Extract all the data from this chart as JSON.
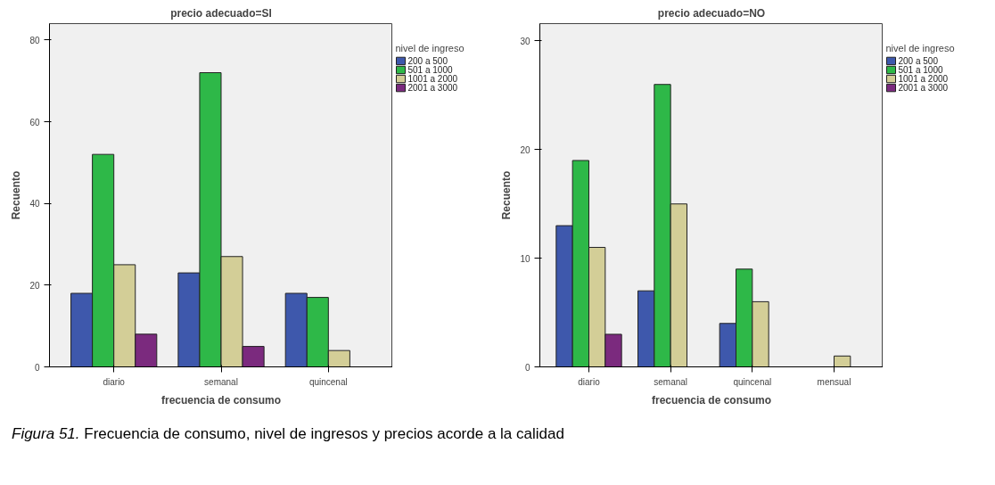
{
  "chart_data": [
    {
      "type": "bar",
      "title": "precio adecuado=SI",
      "xlabel": "frecuencia de consumo",
      "ylabel": "Recuento",
      "legend_title": "nivel de ingreso",
      "categories": [
        "diario",
        "semanal",
        "quincenal"
      ],
      "series": [
        {
          "name": "200 a 500",
          "color": "#3e58ac",
          "values": [
            18,
            23,
            18
          ]
        },
        {
          "name": "501 a 1000",
          "color": "#2eb848",
          "values": [
            52,
            72,
            17
          ]
        },
        {
          "name": "1001 a 2000",
          "color": "#d3ce97",
          "values": [
            25,
            27,
            4
          ]
        },
        {
          "name": "2001 a 3000",
          "color": "#7b2a7e",
          "values": [
            8,
            5,
            null
          ]
        }
      ],
      "ylim": [
        0,
        84
      ],
      "yticks": [
        0,
        20,
        40,
        60,
        80
      ],
      "grid": false,
      "legend": "right",
      "annotations": [
        "Figura 51.  Frecuencia de consumo, nivel de ingresos y precios acorde a la calidad"
      ]
    },
    {
      "type": "bar",
      "title": "precio adecuado=NO",
      "xlabel": "frecuencia de consumo",
      "ylabel": "Recuento",
      "legend_title": "nivel de ingreso",
      "categories": [
        "diario",
        "semanal",
        "quincenal",
        "mensual"
      ],
      "series": [
        {
          "name": "200 a 500",
          "color": "#3e58ac",
          "values": [
            13,
            7,
            4,
            null
          ]
        },
        {
          "name": "501 a 1000",
          "color": "#2eb848",
          "values": [
            19,
            26,
            9,
            null
          ]
        },
        {
          "name": "1001 a 2000",
          "color": "#d3ce97",
          "values": [
            11,
            15,
            6,
            1
          ]
        },
        {
          "name": "2001 a 3000",
          "color": "#7b2a7e",
          "values": [
            3,
            null,
            null,
            null
          ]
        }
      ],
      "ylim": [
        0,
        31.6
      ],
      "yticks": [
        0,
        10,
        20,
        30
      ],
      "grid": false,
      "legend": "right"
    }
  ]
}
